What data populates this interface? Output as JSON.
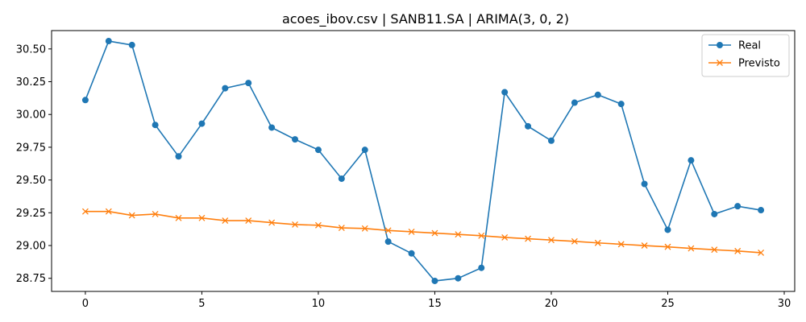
{
  "chart_data": {
    "type": "line",
    "title": "acoes_ibov.csv | SANB11.SA | ARIMA(3, 0, 2)",
    "xlabel": "",
    "ylabel": "",
    "xlim": [
      -1.45,
      30.45
    ],
    "ylim": [
      28.65,
      30.64
    ],
    "xticks": [
      0,
      5,
      10,
      15,
      20,
      25,
      30
    ],
    "yticks": [
      28.75,
      29.0,
      29.25,
      29.5,
      29.75,
      30.0,
      30.25,
      30.5
    ],
    "ytick_labels": [
      "28.75",
      "29.00",
      "29.25",
      "29.50",
      "29.75",
      "30.00",
      "30.25",
      "30.50"
    ],
    "grid": false,
    "legend_position": "top-right",
    "x": [
      0,
      1,
      2,
      3,
      4,
      5,
      6,
      7,
      8,
      9,
      10,
      11,
      12,
      13,
      14,
      15,
      16,
      17,
      18,
      19,
      20,
      21,
      22,
      23,
      24,
      25,
      26,
      27,
      28,
      29
    ],
    "series": [
      {
        "name": "Real",
        "color": "#1f77b4",
        "marker": "circle",
        "values": [
          30.11,
          30.56,
          30.53,
          29.92,
          29.68,
          29.93,
          30.2,
          30.24,
          29.9,
          29.81,
          29.73,
          29.51,
          29.73,
          29.03,
          28.94,
          28.73,
          28.75,
          28.83,
          30.17,
          29.91,
          29.8,
          30.09,
          30.15,
          30.08,
          29.47,
          29.12,
          29.65,
          29.24,
          29.3,
          29.27
        ]
      },
      {
        "name": "Previsto",
        "color": "#ff7f0e",
        "marker": "x",
        "values": [
          29.26,
          29.26,
          29.23,
          29.24,
          29.21,
          29.21,
          29.19,
          29.19,
          29.175,
          29.16,
          29.155,
          29.135,
          29.13,
          29.115,
          29.105,
          29.095,
          29.085,
          29.075,
          29.062,
          29.052,
          29.042,
          29.032,
          29.02,
          29.01,
          29.0,
          28.99,
          28.978,
          28.968,
          28.958,
          28.945
        ]
      }
    ]
  }
}
